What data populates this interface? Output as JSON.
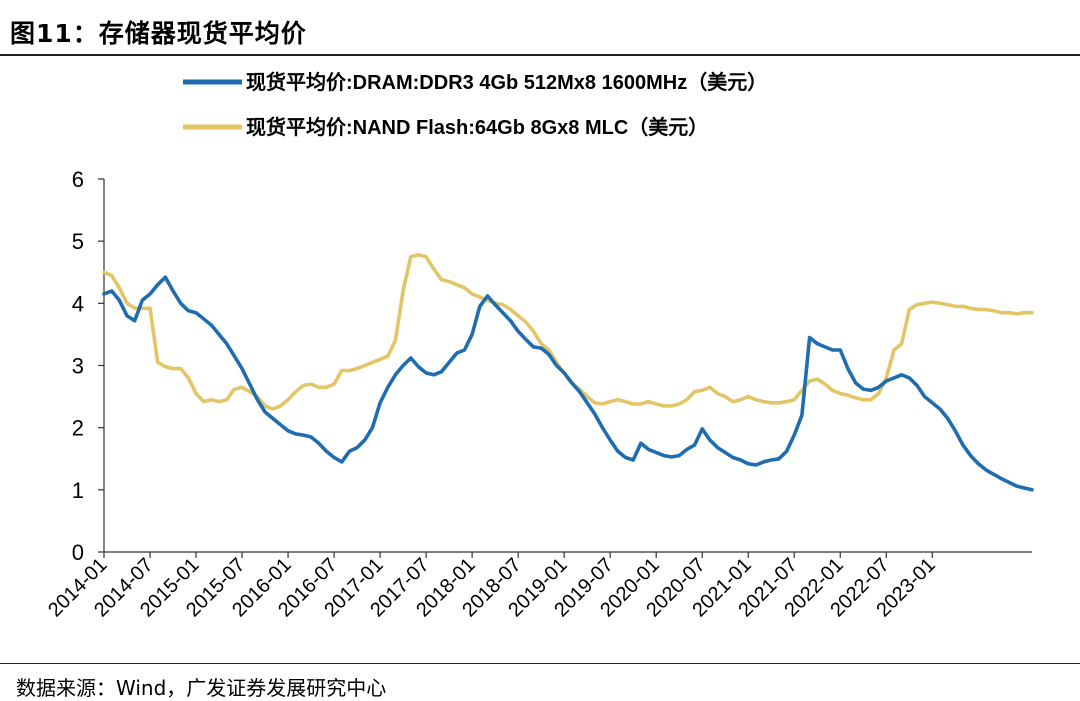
{
  "figure": {
    "title": "图11：存储器现货平均价",
    "source": "数据来源：Wind，广发证券发展研究中心"
  },
  "chart_data": {
    "type": "line",
    "title": "存储器现货平均价",
    "xlabel": "",
    "ylabel": "",
    "ylim": [
      0,
      6
    ],
    "yticks": [
      "0",
      "1",
      "2",
      "3",
      "4",
      "5",
      "6"
    ],
    "xticks": [
      "2014-01",
      "2014-07",
      "2015-01",
      "2015-07",
      "2016-01",
      "2016-07",
      "2017-01",
      "2017-07",
      "2018-01",
      "2018-07",
      "2019-01",
      "2019-07",
      "2020-01",
      "2020-07",
      "2021-01",
      "2021-07",
      "2022-01",
      "2022-07",
      "2023-01"
    ],
    "legend_position": "top",
    "series": [
      {
        "name": "现货平均价:DRAM:DDR3 4Gb 512Mx8 1600MHz（美元）",
        "color": "#1f6db0",
        "points": [
          [
            0,
            4.15
          ],
          [
            1,
            4.2
          ],
          [
            2,
            4.05
          ],
          [
            3,
            3.8
          ],
          [
            4,
            3.72
          ],
          [
            5,
            4.05
          ],
          [
            6,
            4.15
          ],
          [
            7,
            4.3
          ],
          [
            8,
            4.42
          ],
          [
            9,
            4.2
          ],
          [
            10,
            4.0
          ],
          [
            11,
            3.88
          ],
          [
            12,
            3.85
          ],
          [
            13,
            3.75
          ],
          [
            14,
            3.65
          ],
          [
            15,
            3.5
          ],
          [
            16,
            3.35
          ],
          [
            17,
            3.15
          ],
          [
            18,
            2.95
          ],
          [
            19,
            2.7
          ],
          [
            20,
            2.45
          ],
          [
            21,
            2.25
          ],
          [
            22,
            2.15
          ],
          [
            23,
            2.05
          ],
          [
            24,
            1.95
          ],
          [
            25,
            1.9
          ],
          [
            26,
            1.88
          ],
          [
            27,
            1.85
          ],
          [
            28,
            1.75
          ],
          [
            29,
            1.62
          ],
          [
            30,
            1.52
          ],
          [
            31,
            1.45
          ],
          [
            32,
            1.62
          ],
          [
            33,
            1.68
          ],
          [
            34,
            1.8
          ],
          [
            35,
            2.0
          ],
          [
            36,
            2.4
          ],
          [
            37,
            2.65
          ],
          [
            38,
            2.85
          ],
          [
            39,
            3.0
          ],
          [
            40,
            3.12
          ],
          [
            41,
            2.98
          ],
          [
            42,
            2.88
          ],
          [
            43,
            2.85
          ],
          [
            44,
            2.9
          ],
          [
            45,
            3.05
          ],
          [
            46,
            3.2
          ],
          [
            47,
            3.25
          ],
          [
            48,
            3.5
          ],
          [
            49,
            3.95
          ],
          [
            50,
            4.12
          ],
          [
            51,
            3.98
          ],
          [
            52,
            3.85
          ],
          [
            53,
            3.72
          ],
          [
            54,
            3.55
          ],
          [
            55,
            3.42
          ],
          [
            56,
            3.3
          ],
          [
            57,
            3.28
          ],
          [
            58,
            3.18
          ],
          [
            59,
            3.0
          ],
          [
            60,
            2.88
          ],
          [
            61,
            2.72
          ],
          [
            62,
            2.58
          ],
          [
            63,
            2.4
          ],
          [
            64,
            2.22
          ],
          [
            65,
            2.0
          ],
          [
            66,
            1.8
          ],
          [
            67,
            1.62
          ],
          [
            68,
            1.52
          ],
          [
            69,
            1.48
          ],
          [
            70,
            1.75
          ],
          [
            71,
            1.65
          ],
          [
            72,
            1.6
          ],
          [
            73,
            1.55
          ],
          [
            74,
            1.53
          ],
          [
            75,
            1.55
          ],
          [
            76,
            1.65
          ],
          [
            77,
            1.72
          ],
          [
            78,
            1.98
          ],
          [
            79,
            1.8
          ],
          [
            80,
            1.68
          ],
          [
            81,
            1.6
          ],
          [
            82,
            1.52
          ],
          [
            83,
            1.48
          ],
          [
            84,
            1.42
          ],
          [
            85,
            1.4
          ],
          [
            86,
            1.45
          ],
          [
            87,
            1.48
          ],
          [
            88,
            1.5
          ],
          [
            89,
            1.62
          ],
          [
            90,
            1.88
          ],
          [
            91,
            2.2
          ],
          [
            92,
            3.45
          ],
          [
            93,
            3.35
          ],
          [
            94,
            3.3
          ],
          [
            95,
            3.25
          ],
          [
            96,
            3.25
          ],
          [
            97,
            2.95
          ],
          [
            98,
            2.72
          ],
          [
            99,
            2.62
          ],
          [
            100,
            2.6
          ],
          [
            101,
            2.65
          ],
          [
            102,
            2.75
          ],
          [
            103,
            2.8
          ],
          [
            104,
            2.85
          ],
          [
            105,
            2.8
          ],
          [
            106,
            2.68
          ],
          [
            107,
            2.5
          ],
          [
            108,
            2.4
          ],
          [
            109,
            2.3
          ],
          [
            110,
            2.15
          ],
          [
            111,
            1.95
          ],
          [
            112,
            1.72
          ],
          [
            113,
            1.55
          ],
          [
            114,
            1.42
          ],
          [
            115,
            1.32
          ],
          [
            116,
            1.25
          ],
          [
            117,
            1.18
          ],
          [
            118,
            1.12
          ],
          [
            119,
            1.06
          ],
          [
            120,
            1.03
          ],
          [
            121,
            1.0
          ]
        ]
      },
      {
        "name": "现货平均价:NAND Flash:64Gb 8Gx8 MLC（美元）",
        "color": "#e3c566",
        "points": [
          [
            0,
            4.5
          ],
          [
            1,
            4.45
          ],
          [
            2,
            4.25
          ],
          [
            3,
            4.0
          ],
          [
            4,
            3.92
          ],
          [
            5,
            3.92
          ],
          [
            6,
            3.92
          ],
          [
            7,
            3.05
          ],
          [
            8,
            2.98
          ],
          [
            9,
            2.95
          ],
          [
            10,
            2.95
          ],
          [
            11,
            2.8
          ],
          [
            12,
            2.55
          ],
          [
            13,
            2.42
          ],
          [
            14,
            2.45
          ],
          [
            15,
            2.42
          ],
          [
            16,
            2.45
          ],
          [
            17,
            2.62
          ],
          [
            18,
            2.65
          ],
          [
            19,
            2.58
          ],
          [
            20,
            2.5
          ],
          [
            21,
            2.35
          ],
          [
            22,
            2.3
          ],
          [
            23,
            2.35
          ],
          [
            24,
            2.45
          ],
          [
            25,
            2.58
          ],
          [
            26,
            2.68
          ],
          [
            27,
            2.7
          ],
          [
            28,
            2.65
          ],
          [
            29,
            2.65
          ],
          [
            30,
            2.7
          ],
          [
            31,
            2.92
          ],
          [
            32,
            2.92
          ],
          [
            33,
            2.95
          ],
          [
            34,
            3.0
          ],
          [
            35,
            3.05
          ],
          [
            36,
            3.1
          ],
          [
            37,
            3.15
          ],
          [
            38,
            3.4
          ],
          [
            39,
            4.2
          ],
          [
            40,
            4.75
          ],
          [
            41,
            4.78
          ],
          [
            42,
            4.75
          ],
          [
            43,
            4.55
          ],
          [
            44,
            4.38
          ],
          [
            45,
            4.35
          ],
          [
            46,
            4.3
          ],
          [
            47,
            4.25
          ],
          [
            48,
            4.15
          ],
          [
            49,
            4.1
          ],
          [
            50,
            4.05
          ],
          [
            51,
            4.0
          ],
          [
            52,
            3.98
          ],
          [
            53,
            3.9
          ],
          [
            54,
            3.8
          ],
          [
            55,
            3.7
          ],
          [
            56,
            3.55
          ],
          [
            57,
            3.35
          ],
          [
            58,
            3.25
          ],
          [
            59,
            3.05
          ],
          [
            60,
            2.88
          ],
          [
            61,
            2.72
          ],
          [
            62,
            2.62
          ],
          [
            63,
            2.5
          ],
          [
            64,
            2.4
          ],
          [
            65,
            2.38
          ],
          [
            66,
            2.42
          ],
          [
            67,
            2.45
          ],
          [
            68,
            2.42
          ],
          [
            69,
            2.38
          ],
          [
            70,
            2.38
          ],
          [
            71,
            2.42
          ],
          [
            72,
            2.38
          ],
          [
            73,
            2.35
          ],
          [
            74,
            2.35
          ],
          [
            75,
            2.38
          ],
          [
            76,
            2.45
          ],
          [
            77,
            2.58
          ],
          [
            78,
            2.6
          ],
          [
            79,
            2.65
          ],
          [
            80,
            2.55
          ],
          [
            81,
            2.5
          ],
          [
            82,
            2.42
          ],
          [
            83,
            2.45
          ],
          [
            84,
            2.5
          ],
          [
            85,
            2.45
          ],
          [
            86,
            2.42
          ],
          [
            87,
            2.4
          ],
          [
            88,
            2.4
          ],
          [
            89,
            2.42
          ],
          [
            90,
            2.45
          ],
          [
            91,
            2.6
          ],
          [
            92,
            2.75
          ],
          [
            93,
            2.78
          ],
          [
            94,
            2.7
          ],
          [
            95,
            2.6
          ],
          [
            96,
            2.55
          ],
          [
            97,
            2.52
          ],
          [
            98,
            2.48
          ],
          [
            99,
            2.45
          ],
          [
            100,
            2.45
          ],
          [
            101,
            2.55
          ],
          [
            102,
            2.8
          ],
          [
            103,
            3.25
          ],
          [
            104,
            3.35
          ],
          [
            105,
            3.9
          ],
          [
            106,
            3.98
          ],
          [
            107,
            4.0
          ],
          [
            108,
            4.02
          ],
          [
            109,
            4.0
          ],
          [
            110,
            3.98
          ],
          [
            111,
            3.95
          ],
          [
            112,
            3.95
          ],
          [
            113,
            3.92
          ],
          [
            114,
            3.9
          ],
          [
            115,
            3.9
          ],
          [
            116,
            3.88
          ],
          [
            117,
            3.85
          ],
          [
            118,
            3.85
          ],
          [
            119,
            3.83
          ],
          [
            120,
            3.85
          ],
          [
            121,
            3.85
          ]
        ]
      }
    ]
  }
}
